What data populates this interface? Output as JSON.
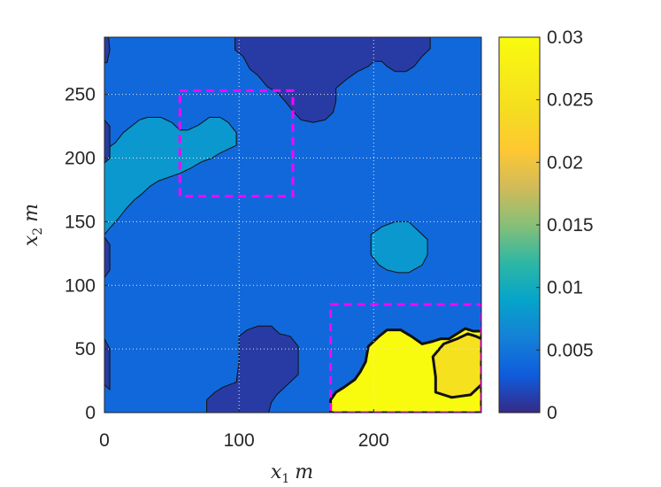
{
  "chart_data": {
    "type": "contourf",
    "title": "",
    "xlabel": {
      "var": "x",
      "sub": "1",
      "unit": "m"
    },
    "ylabel": {
      "var": "x",
      "sub": "2",
      "unit": "m"
    },
    "xlim": [
      0,
      280
    ],
    "ylim": [
      0,
      295
    ],
    "xticks": [
      0,
      100,
      200
    ],
    "yticks": [
      0,
      50,
      100,
      150,
      200,
      250
    ],
    "grid": true,
    "colormap": "parula",
    "colorbar": {
      "range": [
        0,
        0.03
      ],
      "ticks": [
        "0",
        "0.005",
        "0.01",
        "0.015",
        "0.02",
        "0.025",
        "0.03"
      ]
    },
    "background_level": 0.004,
    "regions": [
      {
        "name": "top-center-low",
        "level": 0.001,
        "points": [
          [
            97,
            295
          ],
          [
            97,
            285
          ],
          [
            103,
            280
          ],
          [
            108,
            270
          ],
          [
            114,
            265
          ],
          [
            121,
            256
          ],
          [
            128,
            252
          ],
          [
            134,
            245
          ],
          [
            140,
            237
          ],
          [
            146,
            230
          ],
          [
            155,
            228
          ],
          [
            164,
            230
          ],
          [
            170,
            236
          ],
          [
            172,
            245
          ],
          [
            172,
            255
          ],
          [
            180,
            262
          ],
          [
            188,
            268
          ],
          [
            196,
            272
          ],
          [
            200,
            276
          ],
          [
            206,
            276
          ],
          [
            210,
            272
          ],
          [
            216,
            268
          ],
          [
            224,
            268
          ],
          [
            230,
            272
          ],
          [
            236,
            280
          ],
          [
            242,
            286
          ],
          [
            242,
            295
          ]
        ]
      },
      {
        "name": "top-left-edge-low",
        "level": 0.001,
        "points": [
          [
            0,
            295
          ],
          [
            3,
            295
          ],
          [
            4,
            285
          ],
          [
            2,
            275
          ],
          [
            0,
            275
          ]
        ]
      },
      {
        "name": "left-blob-mid",
        "level": 0.008,
        "points": [
          [
            0,
            140
          ],
          [
            4,
            145
          ],
          [
            10,
            152
          ],
          [
            16,
            160
          ],
          [
            22,
            167
          ],
          [
            28,
            172
          ],
          [
            34,
            178
          ],
          [
            40,
            182
          ],
          [
            48,
            185
          ],
          [
            56,
            188
          ],
          [
            64,
            192
          ],
          [
            72,
            197
          ],
          [
            80,
            200
          ],
          [
            86,
            204
          ],
          [
            98,
            210
          ],
          [
            98,
            220
          ],
          [
            92,
            228
          ],
          [
            86,
            232
          ],
          [
            78,
            232
          ],
          [
            70,
            226
          ],
          [
            62,
            222
          ],
          [
            56,
            222
          ],
          [
            50,
            228
          ],
          [
            42,
            232
          ],
          [
            32,
            232
          ],
          [
            26,
            230
          ],
          [
            20,
            225
          ],
          [
            14,
            220
          ],
          [
            8,
            212
          ],
          [
            0,
            206
          ]
        ]
      },
      {
        "name": "left-edge-low-1",
        "level": 0.001,
        "points": [
          [
            0,
            230
          ],
          [
            4,
            225
          ],
          [
            4,
            200
          ],
          [
            0,
            196
          ]
        ]
      },
      {
        "name": "left-edge-low-2",
        "level": 0.001,
        "points": [
          [
            0,
            138
          ],
          [
            4,
            132
          ],
          [
            4,
            112
          ],
          [
            0,
            106
          ]
        ]
      },
      {
        "name": "right-mid-blob",
        "level": 0.008,
        "points": [
          [
            210,
            112
          ],
          [
            218,
            110
          ],
          [
            226,
            110
          ],
          [
            236,
            116
          ],
          [
            240,
            124
          ],
          [
            240,
            136
          ],
          [
            232,
            144
          ],
          [
            226,
            150
          ],
          [
            216,
            150
          ],
          [
            206,
            146
          ],
          [
            198,
            140
          ],
          [
            198,
            124
          ],
          [
            204,
            116
          ]
        ]
      },
      {
        "name": "bottom-left-low",
        "level": 0.001,
        "points": [
          [
            0,
            22
          ],
          [
            4,
            18
          ],
          [
            4,
            50
          ],
          [
            0,
            58
          ]
        ]
      },
      {
        "name": "bottom-center-low",
        "level": 0.001,
        "points": [
          [
            76,
            0
          ],
          [
            76,
            10
          ],
          [
            82,
            16
          ],
          [
            88,
            20
          ],
          [
            98,
            24
          ],
          [
            100,
            40
          ],
          [
            100,
            60
          ],
          [
            106,
            65
          ],
          [
            114,
            68
          ],
          [
            124,
            68
          ],
          [
            130,
            62
          ],
          [
            138,
            60
          ],
          [
            144,
            52
          ],
          [
            144,
            30
          ],
          [
            136,
            22
          ],
          [
            128,
            14
          ],
          [
            124,
            8
          ],
          [
            122,
            0
          ]
        ]
      },
      {
        "name": "bottom-right-high",
        "level": 0.03,
        "points": [
          [
            168,
            0
          ],
          [
            168,
            10
          ],
          [
            172,
            16
          ],
          [
            178,
            20
          ],
          [
            186,
            26
          ],
          [
            190,
            32
          ],
          [
            194,
            40
          ],
          [
            196,
            52
          ],
          [
            204,
            60
          ],
          [
            210,
            65
          ],
          [
            220,
            65
          ],
          [
            228,
            60
          ],
          [
            236,
            54
          ],
          [
            244,
            56
          ],
          [
            250,
            58
          ],
          [
            256,
            58
          ],
          [
            262,
            62
          ],
          [
            268,
            66
          ],
          [
            274,
            64
          ],
          [
            280,
            64
          ],
          [
            280,
            0
          ]
        ]
      },
      {
        "name": "bottom-right-inner",
        "level": 0.025,
        "points": [
          [
            246,
            16
          ],
          [
            246,
            28
          ],
          [
            244,
            44
          ],
          [
            252,
            54
          ],
          [
            262,
            58
          ],
          [
            270,
            62
          ],
          [
            276,
            60
          ],
          [
            280,
            58
          ],
          [
            280,
            22
          ],
          [
            272,
            14
          ],
          [
            258,
            12
          ]
        ]
      }
    ],
    "annotations": [
      {
        "name": "dashed-rect-top",
        "x": [
          56,
          140
        ],
        "y": [
          170,
          253
        ],
        "color": "#ff00ff"
      },
      {
        "name": "dashed-rect-bottom",
        "x": [
          168,
          280
        ],
        "y": [
          0,
          85
        ],
        "color": "#ff00ff"
      }
    ]
  }
}
